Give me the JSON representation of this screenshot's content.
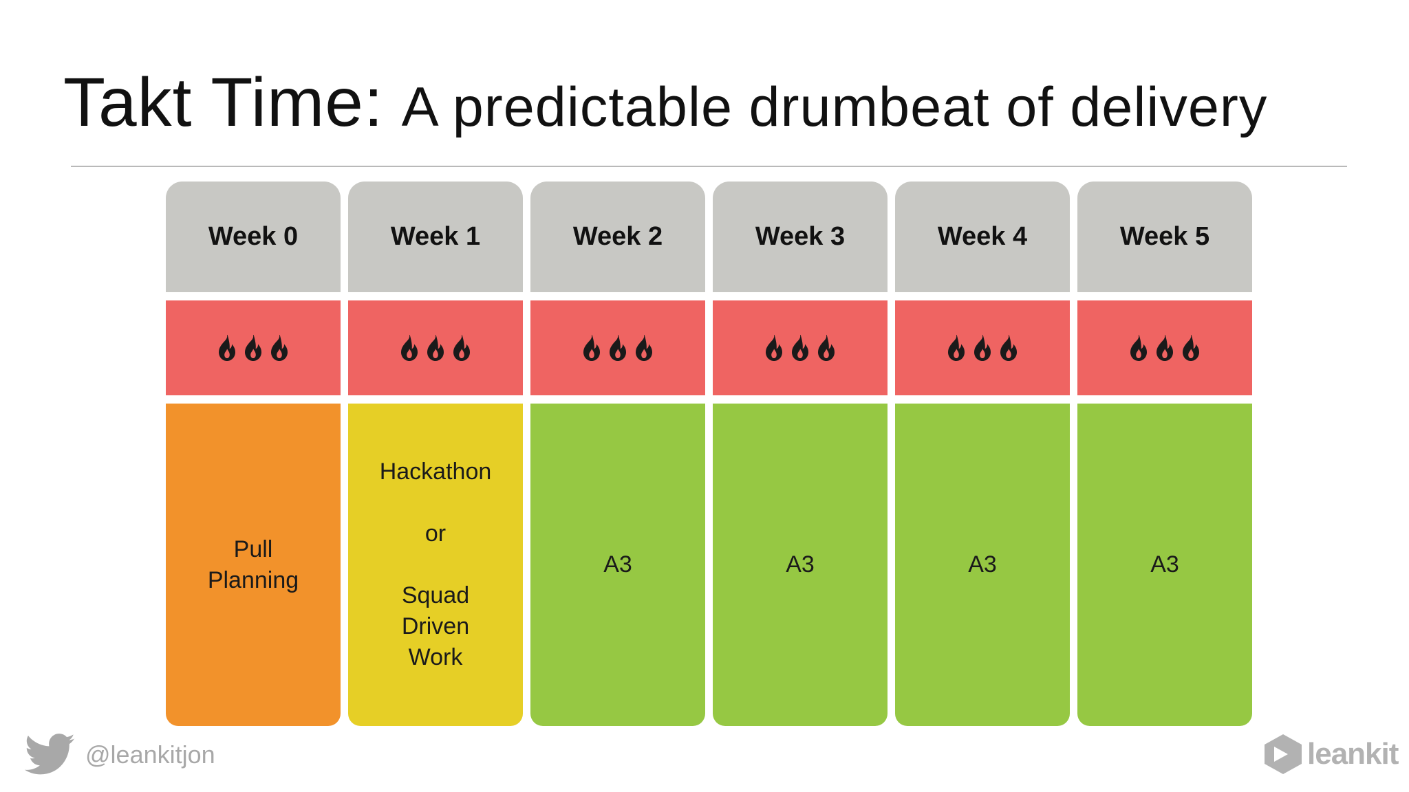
{
  "title": {
    "main": "Takt Time:",
    "sub": "A predictable drumbeat of delivery"
  },
  "board": {
    "columns": [
      {
        "header": "Week 0",
        "fire_icons": [
          "flame-icon",
          "flame-icon",
          "flame-icon"
        ],
        "body_lines": [
          "Pull",
          "Planning"
        ],
        "color": "#f2922b"
      },
      {
        "header": "Week 1",
        "fire_icons": [
          "flame-icon",
          "flame-icon",
          "flame-icon"
        ],
        "body_lines": [
          "Hackathon",
          "or",
          "Squad",
          "Driven",
          "Work"
        ],
        "color": "#e6cf26"
      },
      {
        "header": "Week 2",
        "fire_icons": [
          "flame-icon",
          "flame-icon",
          "flame-icon"
        ],
        "body_lines": [
          "A3"
        ],
        "color": "#96c843"
      },
      {
        "header": "Week 3",
        "fire_icons": [
          "flame-icon",
          "flame-icon",
          "flame-icon"
        ],
        "body_lines": [
          "A3"
        ],
        "color": "#96c843"
      },
      {
        "header": "Week 4",
        "fire_icons": [
          "flame-icon",
          "flame-icon",
          "flame-icon"
        ],
        "body_lines": [
          "A3"
        ],
        "color": "#96c843"
      },
      {
        "header": "Week 5",
        "fire_icons": [
          "flame-icon",
          "flame-icon",
          "flame-icon"
        ],
        "body_lines": [
          "A3"
        ],
        "color": "#96c843"
      }
    ],
    "header_color": "#c8c8c4",
    "fire_row_color": "#ef6462"
  },
  "footer": {
    "handle": "@leankitjon",
    "handle_icon": "twitter-bird-icon",
    "brand": "leankit",
    "brand_icon": "leankit-logo-icon"
  }
}
